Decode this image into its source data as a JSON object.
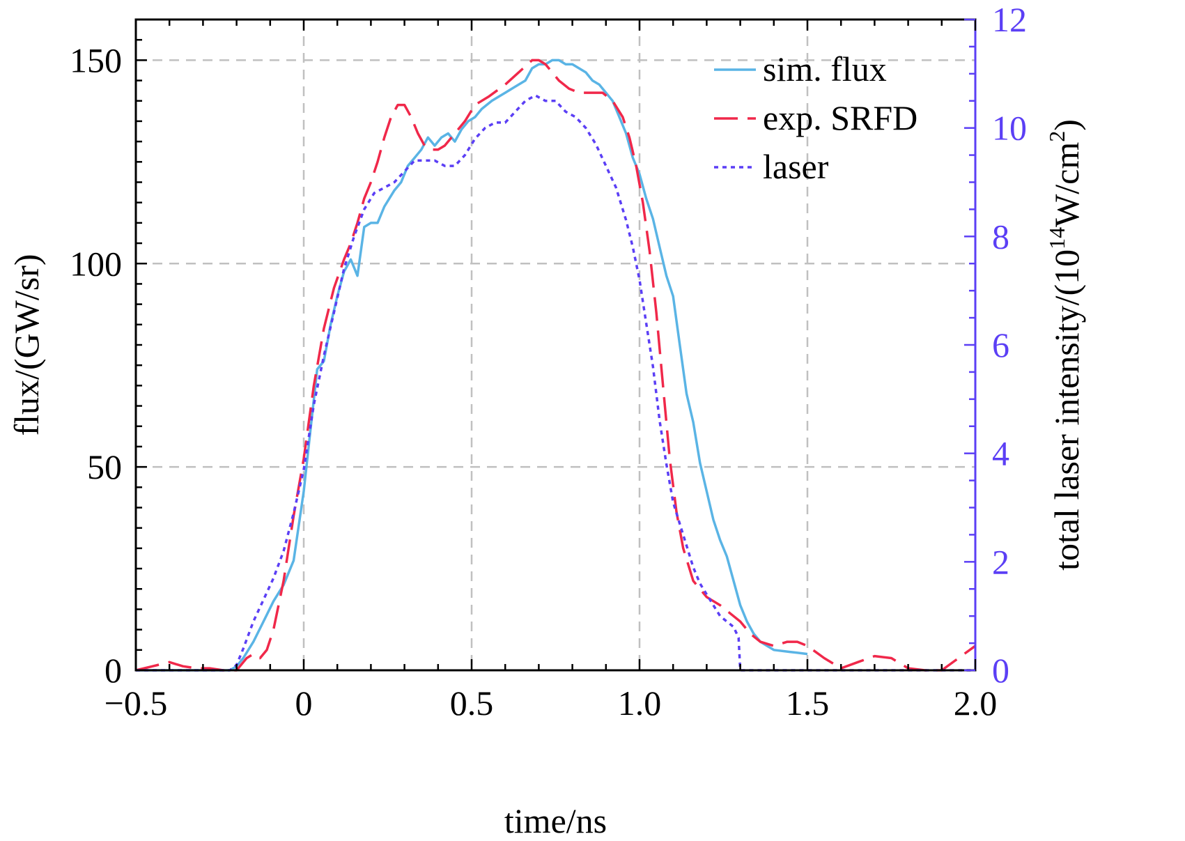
{
  "chart_data": {
    "type": "line",
    "xlabel": "time/ns",
    "ylabel": "flux/(GW/sr)",
    "y2label_base": "total laser intensity/(10",
    "y2label_exp1": "14",
    "y2label_mid": "W/cm",
    "y2label_exp2": "2",
    "y2label_end": ")",
    "xlim": [
      -0.5,
      2.0
    ],
    "ylim": [
      0,
      160
    ],
    "y2lim": [
      0,
      12
    ],
    "xticks": [
      -0.5,
      0,
      0.5,
      1.0,
      1.5,
      2.0
    ],
    "xtick_labels": [
      "−0.5",
      "0",
      "0.5",
      "1.0",
      "1.5",
      "2.0"
    ],
    "yticks": [
      0,
      50,
      100,
      150
    ],
    "ytick_labels": [
      "0",
      "50",
      "100",
      "150"
    ],
    "y2ticks": [
      0,
      2,
      4,
      6,
      8,
      10,
      12
    ],
    "y2tick_labels": [
      "0",
      "2",
      "4",
      "6",
      "8",
      "10",
      "12"
    ],
    "grid": true,
    "legend_position": "top-right",
    "colors": {
      "sim": "#5ab4e5",
      "exp": "#f0284a",
      "laser": "#5b3ff5",
      "right_axis": "#5b3ff5",
      "grid": "#c0c0c0"
    },
    "series": [
      {
        "name": "sim. flux",
        "axis": "left",
        "style": "solid",
        "x": [
          -0.5,
          -0.22,
          -0.2,
          -0.18,
          -0.15,
          -0.12,
          -0.09,
          -0.06,
          -0.03,
          0.0,
          0.02,
          0.04,
          0.06,
          0.08,
          0.1,
          0.12,
          0.14,
          0.16,
          0.18,
          0.2,
          0.22,
          0.24,
          0.27,
          0.29,
          0.31,
          0.33,
          0.35,
          0.37,
          0.39,
          0.41,
          0.43,
          0.45,
          0.47,
          0.49,
          0.51,
          0.53,
          0.56,
          0.58,
          0.6,
          0.62,
          0.64,
          0.66,
          0.68,
          0.7,
          0.72,
          0.74,
          0.76,
          0.78,
          0.8,
          0.82,
          0.84,
          0.86,
          0.88,
          0.9,
          0.92,
          0.94,
          0.96,
          0.98,
          1.0,
          1.02,
          1.04,
          1.06,
          1.08,
          1.1,
          1.12,
          1.14,
          1.16,
          1.18,
          1.2,
          1.22,
          1.24,
          1.26,
          1.28,
          1.3,
          1.32,
          1.34,
          1.36,
          1.38,
          1.4,
          1.45,
          1.5
        ],
        "y": [
          0,
          0,
          1,
          3,
          7,
          12,
          17,
          21,
          27,
          44,
          59,
          74,
          76,
          85,
          92,
          98,
          101,
          97,
          109,
          110,
          110,
          114,
          118,
          120,
          124,
          126,
          128,
          131,
          129,
          131,
          132,
          130,
          133,
          135,
          136,
          138,
          140,
          141,
          142,
          143,
          144,
          145,
          148,
          149,
          149,
          150,
          150,
          149,
          149,
          148,
          147,
          145,
          144,
          142,
          140,
          136,
          132,
          126,
          122,
          116,
          111,
          104,
          97,
          92,
          80,
          68,
          61,
          51,
          44,
          37,
          32,
          28,
          22,
          16,
          12,
          9,
          7,
          6,
          5,
          4.5,
          4
        ]
      },
      {
        "name": "exp. SRFD",
        "axis": "left",
        "style": "dashed",
        "x": [
          -0.5,
          -0.45,
          -0.4,
          -0.36,
          -0.32,
          -0.28,
          -0.24,
          -0.2,
          -0.17,
          -0.15,
          -0.13,
          -0.11,
          -0.09,
          -0.06,
          -0.03,
          0.0,
          0.03,
          0.06,
          0.09,
          0.12,
          0.14,
          0.16,
          0.18,
          0.2,
          0.22,
          0.24,
          0.26,
          0.28,
          0.3,
          0.32,
          0.34,
          0.36,
          0.38,
          0.4,
          0.42,
          0.45,
          0.48,
          0.51,
          0.55,
          0.6,
          0.64,
          0.68,
          0.7,
          0.72,
          0.74,
          0.76,
          0.79,
          0.82,
          0.86,
          0.89,
          0.92,
          0.95,
          0.97,
          0.99,
          1.01,
          1.03,
          1.05,
          1.07,
          1.09,
          1.11,
          1.13,
          1.16,
          1.2,
          1.24,
          1.27,
          1.3,
          1.33,
          1.36,
          1.4,
          1.44,
          1.47,
          1.5,
          1.55,
          1.6,
          1.65,
          1.7,
          1.75,
          1.8,
          1.85,
          1.9,
          1.95,
          2.0
        ],
        "y": [
          0,
          1,
          2,
          1,
          0.5,
          0.5,
          0,
          0,
          3,
          4,
          3,
          5,
          10,
          22,
          38,
          52,
          70,
          84,
          94,
          101,
          105,
          110,
          116,
          120,
          125,
          131,
          136,
          139,
          139,
          136,
          132,
          129,
          128,
          128,
          129,
          132,
          135,
          139,
          141,
          144,
          147,
          150,
          150,
          149,
          147,
          145,
          143,
          142,
          142,
          142,
          140,
          136,
          131,
          124,
          115,
          103,
          88,
          70,
          52,
          39,
          30,
          22,
          18,
          16,
          14,
          12,
          9,
          7,
          6,
          7,
          7,
          6,
          3,
          0.5,
          2,
          3.5,
          3,
          0.5,
          0,
          0,
          3,
          6
        ]
      },
      {
        "name": "laser",
        "axis": "right",
        "style": "dotted",
        "x": [
          -0.5,
          -0.22,
          -0.2,
          -0.18,
          -0.15,
          -0.12,
          -0.09,
          -0.06,
          -0.03,
          0.0,
          0.03,
          0.06,
          0.09,
          0.12,
          0.15,
          0.18,
          0.21,
          0.24,
          0.27,
          0.3,
          0.33,
          0.36,
          0.39,
          0.42,
          0.45,
          0.48,
          0.51,
          0.54,
          0.57,
          0.6,
          0.63,
          0.66,
          0.69,
          0.72,
          0.75,
          0.78,
          0.81,
          0.84,
          0.87,
          0.9,
          0.93,
          0.96,
          0.98,
          1.0,
          1.02,
          1.04,
          1.06,
          1.08,
          1.1,
          1.12,
          1.14,
          1.16,
          1.18,
          1.2,
          1.22,
          1.24,
          1.26,
          1.28,
          1.295,
          1.3,
          1.35,
          1.5,
          2.0
        ],
        "y": [
          0,
          0,
          0.1,
          0.4,
          0.9,
          1.3,
          1.7,
          2.2,
          2.9,
          3.7,
          4.9,
          5.8,
          6.6,
          7.4,
          8.0,
          8.5,
          8.8,
          8.9,
          9.0,
          9.2,
          9.4,
          9.4,
          9.4,
          9.3,
          9.3,
          9.5,
          9.8,
          10.0,
          10.1,
          10.1,
          10.3,
          10.5,
          10.6,
          10.5,
          10.5,
          10.3,
          10.2,
          10.0,
          9.7,
          9.3,
          8.9,
          8.3,
          7.8,
          7.2,
          6.4,
          5.6,
          4.6,
          3.8,
          3.1,
          2.7,
          2.3,
          1.9,
          1.6,
          1.4,
          1.2,
          1.0,
          0.9,
          0.8,
          0.6,
          0,
          0,
          0,
          0
        ]
      }
    ]
  }
}
